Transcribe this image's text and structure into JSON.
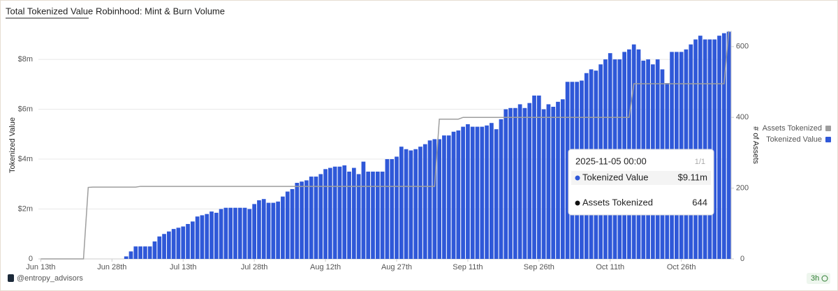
{
  "header": {
    "tabs": [
      "Total Tokenized Value",
      "Robinhood: Mint & Burn Volume"
    ]
  },
  "footer": {
    "handle": "@entropy_advisors",
    "age": "3h"
  },
  "chart_data": {
    "type": "bar",
    "ylabel": "Tokenized Value",
    "y2label": "# of Assets",
    "x": [
      "2025-06-13",
      "2025-06-14",
      "2025-06-15",
      "2025-06-16",
      "2025-06-17",
      "2025-06-18",
      "2025-06-19",
      "2025-06-20",
      "2025-06-21",
      "2025-06-22",
      "2025-06-23",
      "2025-06-24",
      "2025-06-25",
      "2025-06-26",
      "2025-06-27",
      "2025-06-28",
      "2025-06-29",
      "2025-06-30",
      "2025-07-01",
      "2025-07-02",
      "2025-07-03",
      "2025-07-04",
      "2025-07-05",
      "2025-07-06",
      "2025-07-07",
      "2025-07-08",
      "2025-07-09",
      "2025-07-10",
      "2025-07-11",
      "2025-07-12",
      "2025-07-13",
      "2025-07-14",
      "2025-07-15",
      "2025-07-16",
      "2025-07-17",
      "2025-07-18",
      "2025-07-19",
      "2025-07-20",
      "2025-07-21",
      "2025-07-22",
      "2025-07-23",
      "2025-07-24",
      "2025-07-25",
      "2025-07-26",
      "2025-07-27",
      "2025-07-28",
      "2025-07-29",
      "2025-07-30",
      "2025-07-31",
      "2025-08-01",
      "2025-08-02",
      "2025-08-03",
      "2025-08-04",
      "2025-08-05",
      "2025-08-06",
      "2025-08-07",
      "2025-08-08",
      "2025-08-09",
      "2025-08-10",
      "2025-08-11",
      "2025-08-12",
      "2025-08-13",
      "2025-08-14",
      "2025-08-15",
      "2025-08-16",
      "2025-08-17",
      "2025-08-18",
      "2025-08-19",
      "2025-08-20",
      "2025-08-21",
      "2025-08-22",
      "2025-08-23",
      "2025-08-24",
      "2025-08-25",
      "2025-08-26",
      "2025-08-27",
      "2025-08-28",
      "2025-08-29",
      "2025-08-30",
      "2025-08-31",
      "2025-09-01",
      "2025-09-02",
      "2025-09-03",
      "2025-09-04",
      "2025-09-05",
      "2025-09-06",
      "2025-09-07",
      "2025-09-08",
      "2025-09-09",
      "2025-09-10",
      "2025-09-11",
      "2025-09-12",
      "2025-09-13",
      "2025-09-14",
      "2025-09-15",
      "2025-09-16",
      "2025-09-17",
      "2025-09-18",
      "2025-09-19",
      "2025-09-20",
      "2025-09-21",
      "2025-09-22",
      "2025-09-23",
      "2025-09-24",
      "2025-09-25",
      "2025-09-26",
      "2025-09-27",
      "2025-09-28",
      "2025-09-29",
      "2025-09-30",
      "2025-10-01",
      "2025-10-02",
      "2025-10-03",
      "2025-10-04",
      "2025-10-05",
      "2025-10-06",
      "2025-10-07",
      "2025-10-08",
      "2025-10-09",
      "2025-10-10",
      "2025-10-11",
      "2025-10-12",
      "2025-10-13",
      "2025-10-14",
      "2025-10-15",
      "2025-10-16",
      "2025-10-17",
      "2025-10-18",
      "2025-10-19",
      "2025-10-20",
      "2025-10-21",
      "2025-10-22",
      "2025-10-23",
      "2025-10-24",
      "2025-10-25",
      "2025-10-26",
      "2025-10-27",
      "2025-10-28",
      "2025-10-29",
      "2025-10-30",
      "2025-10-31",
      "2025-11-01",
      "2025-11-02",
      "2025-11-03",
      "2025-11-04",
      "2025-11-05"
    ],
    "series": [
      {
        "name": "Tokenized Value",
        "color": "#2f58d8",
        "type": "bar",
        "axis": "y",
        "values": [
          0,
          0,
          0,
          0,
          0,
          0,
          0,
          0,
          0,
          0,
          0,
          0,
          0,
          0,
          0,
          0,
          0,
          0,
          0.1,
          0.3,
          0.5,
          0.5,
          0.5,
          0.5,
          0.7,
          0.9,
          1.0,
          1.1,
          1.2,
          1.25,
          1.3,
          1.4,
          1.5,
          1.7,
          1.75,
          1.8,
          1.9,
          1.85,
          2.0,
          2.05,
          2.05,
          2.05,
          2.05,
          2.05,
          2.0,
          2.2,
          2.35,
          2.4,
          2.25,
          2.25,
          2.3,
          2.5,
          2.7,
          2.8,
          3.05,
          3.1,
          3.15,
          3.3,
          3.3,
          3.4,
          3.6,
          3.65,
          3.7,
          3.7,
          3.75,
          3.5,
          3.65,
          3.4,
          3.9,
          3.5,
          3.5,
          3.5,
          3.5,
          4.0,
          4.0,
          4.1,
          4.5,
          4.4,
          4.35,
          4.4,
          4.5,
          4.6,
          4.75,
          4.8,
          4.8,
          4.95,
          4.95,
          5.1,
          5.15,
          5.3,
          5.4,
          5.3,
          5.3,
          5.3,
          5.35,
          5.45,
          5.2,
          5.6,
          6.0,
          6.05,
          6.05,
          6.2,
          6.05,
          6.25,
          6.55,
          6.55,
          6.0,
          6.2,
          6.1,
          6.3,
          6.4,
          7.1,
          7.1,
          7.1,
          7.15,
          7.45,
          7.6,
          7.55,
          7.8,
          8.0,
          8.25,
          8.0,
          8.0,
          8.3,
          8.4,
          8.6,
          8.4,
          7.95,
          8.0,
          7.8,
          8.0,
          7.6,
          7.05,
          8.3,
          8.3,
          8.3,
          8.4,
          8.6,
          8.8,
          8.95,
          8.8,
          8.8,
          8.8,
          8.95,
          9.05,
          9.11
        ]
      },
      {
        "name": "Assets Tokenized",
        "color": "#9e9e9e",
        "type": "line",
        "axis": "y2",
        "values": [
          0,
          0,
          0,
          0,
          0,
          0,
          0,
          0,
          0,
          0,
          202,
          203,
          203,
          203,
          203,
          203,
          203,
          203,
          203,
          203,
          203,
          205,
          205,
          205,
          205,
          205,
          205,
          205,
          205,
          205,
          205,
          205,
          205,
          205,
          205,
          205,
          205,
          205,
          205,
          205,
          205,
          205,
          205,
          205,
          205,
          205,
          205,
          205,
          205,
          205,
          205,
          205,
          205,
          205,
          205,
          205,
          205,
          205,
          205,
          205,
          205,
          205,
          205,
          205,
          205,
          205,
          205,
          205,
          205,
          205,
          205,
          205,
          205,
          205,
          205,
          205,
          205,
          205,
          205,
          205,
          205,
          205,
          205,
          205,
          395,
          395,
          395,
          395,
          395,
          400,
          400,
          400,
          400,
          400,
          400,
          400,
          400,
          400,
          400,
          400,
          400,
          400,
          400,
          400,
          400,
          400,
          400,
          400,
          400,
          400,
          400,
          400,
          400,
          400,
          400,
          400,
          400,
          400,
          400,
          400,
          400,
          400,
          400,
          400,
          400,
          495,
          495,
          495,
          495,
          495,
          495,
          495,
          495,
          495,
          495,
          495,
          495,
          495,
          495,
          495,
          495,
          495,
          495,
          495,
          495,
          644
        ]
      }
    ],
    "xticks": [
      {
        "value": "2025-06-13",
        "label": "Jun 13th"
      },
      {
        "value": "2025-06-28",
        "label": "Jun 28th"
      },
      {
        "value": "2025-07-13",
        "label": "Jul 13th"
      },
      {
        "value": "2025-07-28",
        "label": "Jul 28th"
      },
      {
        "value": "2025-08-12",
        "label": "Aug 12th"
      },
      {
        "value": "2025-08-27",
        "label": "Aug 27th"
      },
      {
        "value": "2025-09-11",
        "label": "Sep 11th"
      },
      {
        "value": "2025-09-26",
        "label": "Sep 26th"
      },
      {
        "value": "2025-10-11",
        "label": "Oct 11th"
      },
      {
        "value": "2025-10-26",
        "label": "Oct 26th"
      }
    ],
    "ylim": [
      0,
      9.15
    ],
    "yticks": [
      0,
      {
        "value": 2,
        "label": "$2m"
      },
      {
        "value": 4,
        "label": "$4m"
      },
      {
        "value": 6,
        "label": "$6m"
      },
      {
        "value": 8,
        "label": "$8m"
      }
    ],
    "y2lim": [
      0,
      645
    ],
    "y2ticks": [
      0,
      200,
      400,
      600
    ],
    "grid": true,
    "legend": "right",
    "tooltip": {
      "date": "2025-11-05 00:00",
      "page": "1/1",
      "labels": [
        "$9.11m",
        "644"
      ]
    }
  }
}
